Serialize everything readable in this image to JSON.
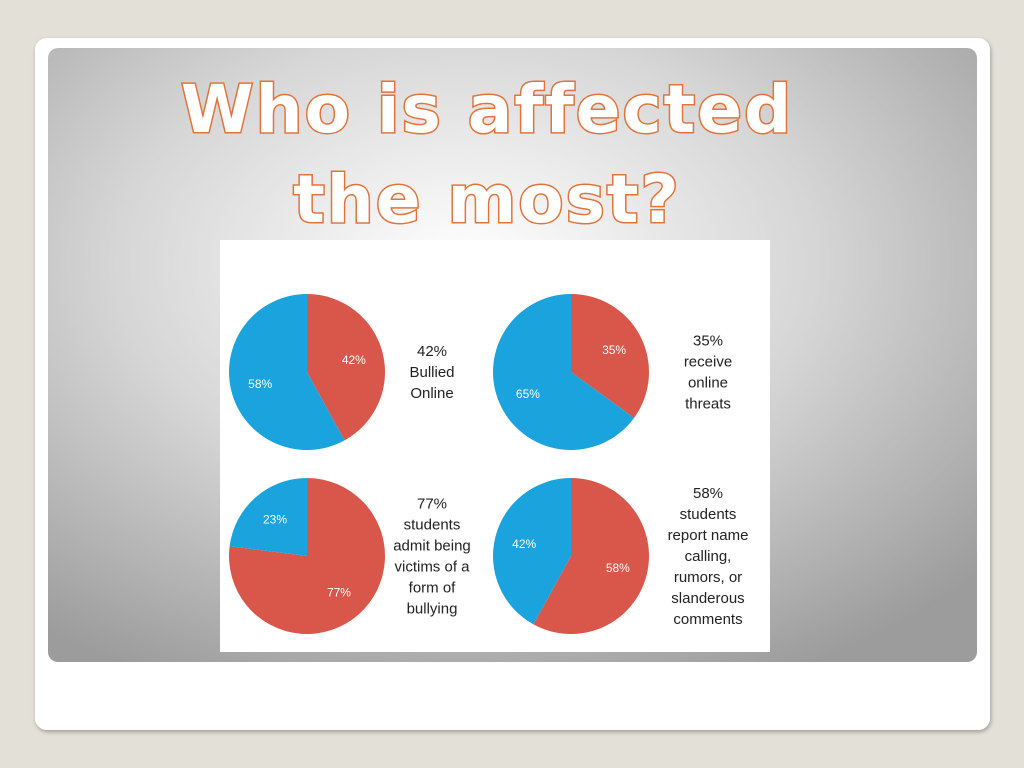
{
  "title": [
    "Who is affected",
    "the most?"
  ],
  "chart_data": [
    {
      "type": "pie",
      "values": [
        42,
        58
      ],
      "value_labels": [
        "42%",
        "58%"
      ],
      "colors": [
        "#d9574a",
        "#1aa3dc"
      ],
      "caption": [
        "42%",
        "Bullied",
        "Online"
      ]
    },
    {
      "type": "pie",
      "values": [
        35,
        65
      ],
      "value_labels": [
        "35%",
        "65%"
      ],
      "colors": [
        "#d9574a",
        "#1aa3dc"
      ],
      "caption": [
        "35%",
        "receive",
        "online",
        "threats"
      ]
    },
    {
      "type": "pie",
      "values": [
        77,
        23
      ],
      "value_labels": [
        "77%",
        "23%"
      ],
      "colors": [
        "#d9574a",
        "#1aa3dc"
      ],
      "caption": [
        "77%",
        "students",
        "admit being",
        "victims of a",
        "form of",
        "bullying"
      ]
    },
    {
      "type": "pie",
      "values": [
        58,
        42
      ],
      "value_labels": [
        "58%",
        "42%"
      ],
      "colors": [
        "#d9574a",
        "#1aa3dc"
      ],
      "caption": [
        "58%",
        "students",
        "report name",
        "calling,",
        "rumors, or",
        "slanderous",
        "comments"
      ]
    }
  ]
}
